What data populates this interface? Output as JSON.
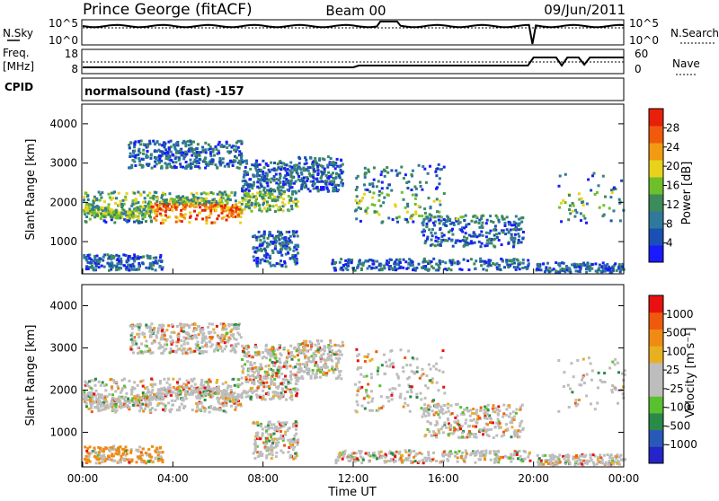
{
  "header": {
    "station": "Prince George (fitACF)",
    "beam": "Beam 00",
    "date": "09/Jun/2011"
  },
  "panel_nsky": {
    "left_label": "N.Sky",
    "right_label": "N.Search",
    "left_ticks": [
      "10^5",
      "10^0"
    ],
    "right_ticks": [
      "10^5",
      "10^0"
    ]
  },
  "panel_freq": {
    "left_label_line1": "Freq.",
    "left_label_line2": "[MHz]",
    "left_ticks": [
      "18",
      "8"
    ],
    "right_ticks": [
      "60",
      "0"
    ],
    "right_label": "Nave"
  },
  "cpid": {
    "label": "CPID",
    "mode": "normalsound (fast) -157"
  },
  "colors": {
    "power_scale": [
      "#1a1aff",
      "#1a4fb4",
      "#2f7a9c",
      "#3d8a5a",
      "#6fbf2a",
      "#e8d21c",
      "#f29a12",
      "#f05a0c",
      "#e8200a"
    ],
    "velocity_scale": [
      "#2424c8",
      "#2a58b8",
      "#2a8a4a",
      "#5ac030",
      "#bdbdbd",
      "#bdbdbd",
      "#e8b020",
      "#f08a12",
      "#ee5a0c",
      "#e81010"
    ]
  },
  "chart_data": [
    {
      "type": "heatmap",
      "name": "power",
      "ylabel": "Slant Range [km]",
      "ylim": [
        180,
        4500
      ],
      "yticks": [
        1000,
        2000,
        3000,
        4000
      ],
      "colorbar": {
        "label": "Power [dB]",
        "range": [
          0,
          32
        ],
        "ticks": [
          "4",
          "8",
          "12",
          "16",
          "20",
          "24",
          "28"
        ]
      }
    },
    {
      "type": "heatmap",
      "name": "velocity",
      "xlabel": "Time UT",
      "ylabel": "Slant Range [km]",
      "ylim": [
        180,
        4500
      ],
      "yticks": [
        1000,
        2000,
        3000,
        4000
      ],
      "xticks": [
        "00:00",
        "04:00",
        "08:00",
        "12:00",
        "16:00",
        "20:00",
        "00:00"
      ],
      "colorbar": {
        "label": "Velocity [m s⁻¹]",
        "ticks": [
          "-1000",
          "-500",
          "-100",
          "-25",
          "25",
          "100",
          "500",
          "1000"
        ]
      }
    }
  ]
}
